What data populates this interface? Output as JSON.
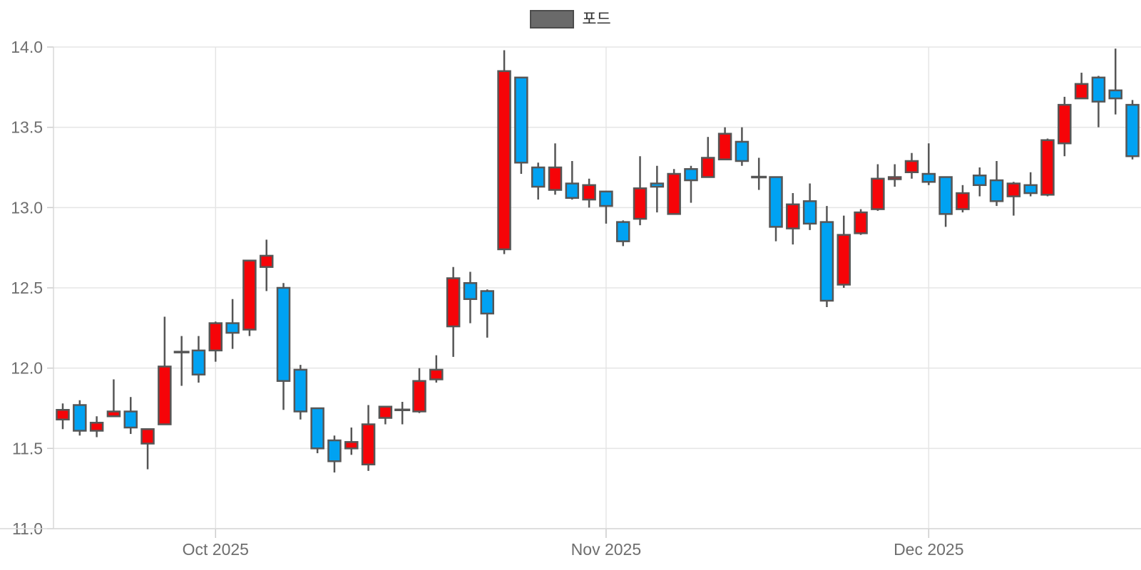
{
  "legend": {
    "label": "포드",
    "swatch_color": "#6a6a6a",
    "swatch_border": "#4c4c4c"
  },
  "colors": {
    "up": "#f60408",
    "down": "#00a2f2",
    "doji": "#555555",
    "wick": "#555555",
    "body_border": "#565656",
    "grid": "#e5e5e5",
    "axis": "#d8d8d8",
    "tick": "#cccccc",
    "tick_label": "#6e6e6e",
    "background": "#ffffff"
  },
  "chart_data": {
    "type": "candlestick",
    "title": "",
    "legend_label": "포드",
    "legend_position": "top-center",
    "grid": true,
    "up_color_rule": "red body when close > open, blue body when close < open, gray dash when close = open",
    "y_axis": {
      "min": 11.0,
      "max": 14.0,
      "tick_step": 0.5,
      "tick_labels": [
        "14.0",
        "13.5",
        "13.0",
        "12.5",
        "12.0",
        "11.5",
        "11.0"
      ],
      "tick_values": [
        14.0,
        13.5,
        13.0,
        12.5,
        12.0,
        11.5,
        11.0
      ]
    },
    "x_axis": {
      "ticks": [
        {
          "label": "Oct 2025",
          "candle_index": 9
        },
        {
          "label": "Nov 2025",
          "candle_index": 32
        },
        {
          "label": "Dec 2025",
          "candle_index": 51
        }
      ]
    },
    "candles": [
      {
        "o": 11.68,
        "h": 11.78,
        "l": 11.62,
        "c": 11.74
      },
      {
        "o": 11.77,
        "h": 11.8,
        "l": 11.58,
        "c": 11.61
      },
      {
        "o": 11.61,
        "h": 11.7,
        "l": 11.57,
        "c": 11.66
      },
      {
        "o": 11.7,
        "h": 11.93,
        "l": 11.7,
        "c": 11.73
      },
      {
        "o": 11.73,
        "h": 11.82,
        "l": 11.59,
        "c": 11.63
      },
      {
        "o": 11.53,
        "h": 11.62,
        "l": 11.37,
        "c": 11.62
      },
      {
        "o": 11.65,
        "h": 12.32,
        "l": 11.65,
        "c": 12.01
      },
      {
        "o": 12.1,
        "h": 12.2,
        "l": 11.89,
        "c": 12.1
      },
      {
        "o": 12.11,
        "h": 12.2,
        "l": 11.91,
        "c": 11.96
      },
      {
        "o": 12.11,
        "h": 12.29,
        "l": 12.04,
        "c": 12.28
      },
      {
        "o": 12.28,
        "h": 12.43,
        "l": 12.12,
        "c": 12.22
      },
      {
        "o": 12.24,
        "h": 12.67,
        "l": 12.2,
        "c": 12.67
      },
      {
        "o": 12.63,
        "h": 12.8,
        "l": 12.48,
        "c": 12.7
      },
      {
        "o": 12.5,
        "h": 12.53,
        "l": 11.74,
        "c": 11.92
      },
      {
        "o": 11.99,
        "h": 12.02,
        "l": 11.68,
        "c": 11.73
      },
      {
        "o": 11.75,
        "h": 11.75,
        "l": 11.47,
        "c": 11.5
      },
      {
        "o": 11.55,
        "h": 11.58,
        "l": 11.35,
        "c": 11.42
      },
      {
        "o": 11.5,
        "h": 11.63,
        "l": 11.46,
        "c": 11.54
      },
      {
        "o": 11.4,
        "h": 11.77,
        "l": 11.36,
        "c": 11.65
      },
      {
        "o": 11.69,
        "h": 11.76,
        "l": 11.65,
        "c": 11.76
      },
      {
        "o": 11.74,
        "h": 11.79,
        "l": 11.65,
        "c": 11.74
      },
      {
        "o": 11.73,
        "h": 12.0,
        "l": 11.72,
        "c": 11.92
      },
      {
        "o": 11.93,
        "h": 12.08,
        "l": 11.91,
        "c": 11.99
      },
      {
        "o": 12.26,
        "h": 12.63,
        "l": 12.07,
        "c": 12.56
      },
      {
        "o": 12.53,
        "h": 12.6,
        "l": 12.28,
        "c": 12.43
      },
      {
        "o": 12.48,
        "h": 12.49,
        "l": 12.19,
        "c": 12.34
      },
      {
        "o": 12.74,
        "h": 13.98,
        "l": 12.71,
        "c": 13.85
      },
      {
        "o": 13.81,
        "h": 13.81,
        "l": 13.21,
        "c": 13.28
      },
      {
        "o": 13.25,
        "h": 13.28,
        "l": 13.05,
        "c": 13.13
      },
      {
        "o": 13.11,
        "h": 13.4,
        "l": 13.08,
        "c": 13.25
      },
      {
        "o": 13.15,
        "h": 13.29,
        "l": 13.05,
        "c": 13.06
      },
      {
        "o": 13.05,
        "h": 13.18,
        "l": 13.0,
        "c": 13.14
      },
      {
        "o": 13.1,
        "h": 13.1,
        "l": 12.9,
        "c": 13.01
      },
      {
        "o": 12.91,
        "h": 12.92,
        "l": 12.76,
        "c": 12.79
      },
      {
        "o": 12.93,
        "h": 13.32,
        "l": 12.89,
        "c": 13.12
      },
      {
        "o": 13.15,
        "h": 13.26,
        "l": 12.97,
        "c": 13.13
      },
      {
        "o": 12.96,
        "h": 13.24,
        "l": 12.96,
        "c": 13.21
      },
      {
        "o": 13.24,
        "h": 13.26,
        "l": 13.03,
        "c": 13.17
      },
      {
        "o": 13.19,
        "h": 13.44,
        "l": 13.19,
        "c": 13.31
      },
      {
        "o": 13.3,
        "h": 13.5,
        "l": 13.3,
        "c": 13.46
      },
      {
        "o": 13.41,
        "h": 13.5,
        "l": 13.26,
        "c": 13.29
      },
      {
        "o": 13.19,
        "h": 13.31,
        "l": 13.11,
        "c": 13.19
      },
      {
        "o": 13.19,
        "h": 13.19,
        "l": 12.79,
        "c": 12.88
      },
      {
        "o": 12.87,
        "h": 13.09,
        "l": 12.77,
        "c": 13.02
      },
      {
        "o": 13.04,
        "h": 13.15,
        "l": 12.86,
        "c": 12.9
      },
      {
        "o": 12.91,
        "h": 13.01,
        "l": 12.38,
        "c": 12.42
      },
      {
        "o": 12.52,
        "h": 12.95,
        "l": 12.5,
        "c": 12.83
      },
      {
        "o": 12.84,
        "h": 12.99,
        "l": 12.83,
        "c": 12.97
      },
      {
        "o": 12.99,
        "h": 13.27,
        "l": 12.98,
        "c": 13.18
      },
      {
        "o": 13.18,
        "h": 13.27,
        "l": 13.13,
        "c": 13.19
      },
      {
        "o": 13.22,
        "h": 13.34,
        "l": 13.18,
        "c": 13.29
      },
      {
        "o": 13.21,
        "h": 13.4,
        "l": 13.14,
        "c": 13.16
      },
      {
        "o": 13.19,
        "h": 13.19,
        "l": 12.88,
        "c": 12.96
      },
      {
        "o": 12.99,
        "h": 13.14,
        "l": 12.97,
        "c": 13.09
      },
      {
        "o": 13.2,
        "h": 13.25,
        "l": 13.07,
        "c": 13.14
      },
      {
        "o": 13.17,
        "h": 13.29,
        "l": 13.01,
        "c": 13.04
      },
      {
        "o": 13.07,
        "h": 13.16,
        "l": 12.95,
        "c": 13.15
      },
      {
        "o": 13.14,
        "h": 13.22,
        "l": 13.07,
        "c": 13.09
      },
      {
        "o": 13.08,
        "h": 13.43,
        "l": 13.07,
        "c": 13.42
      },
      {
        "o": 13.4,
        "h": 13.69,
        "l": 13.32,
        "c": 13.64
      },
      {
        "o": 13.68,
        "h": 13.84,
        "l": 13.68,
        "c": 13.77
      },
      {
        "o": 13.81,
        "h": 13.82,
        "l": 13.5,
        "c": 13.66
      },
      {
        "o": 13.73,
        "h": 13.99,
        "l": 13.58,
        "c": 13.68
      },
      {
        "o": 13.64,
        "h": 13.67,
        "l": 13.3,
        "c": 13.32
      }
    ]
  }
}
